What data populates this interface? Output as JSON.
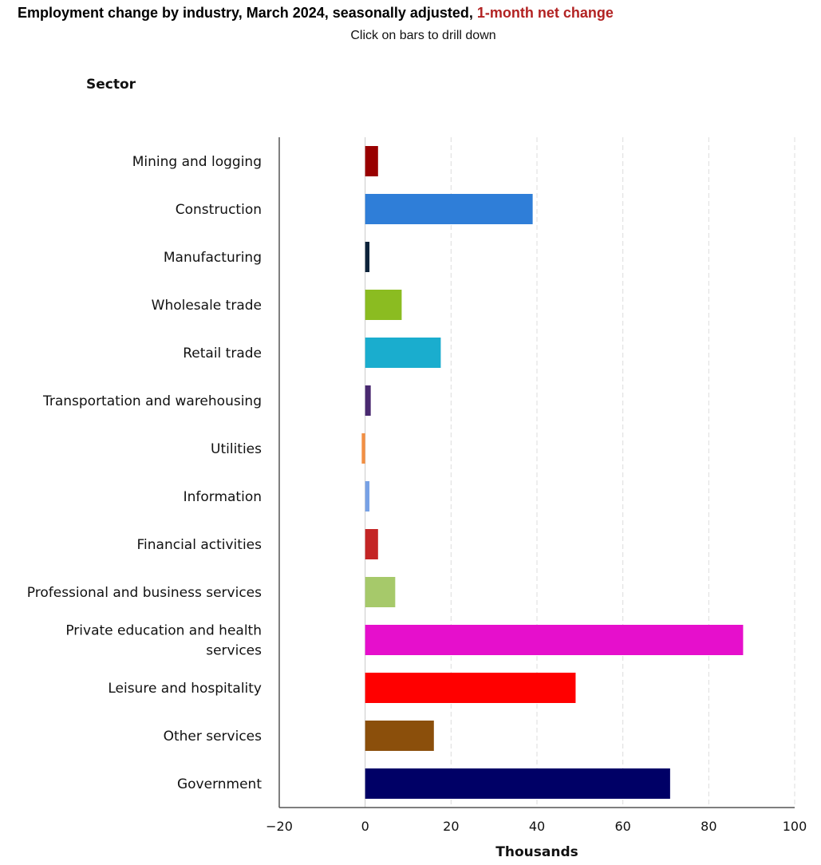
{
  "header": {
    "title_main": "Employment change by industry, March 2024, seasonally adjusted,",
    "title_highlight": "1-month net change",
    "subtitle": "Click on bars to drill down"
  },
  "chart_data": {
    "type": "bar",
    "orientation": "horizontal",
    "y_axis_title": "Sector",
    "x_axis_title": "Thousands",
    "xlim": [
      -20,
      100
    ],
    "x_ticks": [
      -20,
      0,
      20,
      40,
      60,
      80,
      100
    ],
    "x_tick_labels": [
      "−20",
      "0",
      "20",
      "40",
      "60",
      "80",
      "100"
    ],
    "grid": true,
    "categories": [
      [
        "Mining and logging"
      ],
      [
        "Construction"
      ],
      [
        "Manufacturing"
      ],
      [
        "Wholesale trade"
      ],
      [
        "Retail trade"
      ],
      [
        "Transportation and warehousing"
      ],
      [
        "Utilities"
      ],
      [
        "Information"
      ],
      [
        "Financial activities"
      ],
      [
        "Professional and business services"
      ],
      [
        "Private education and health",
        "services"
      ],
      [
        "Leisure and hospitality"
      ],
      [
        "Other services"
      ],
      [
        "Government"
      ]
    ],
    "values": [
      3,
      39,
      1,
      8.5,
      17.6,
      1.3,
      -0.8,
      1,
      3,
      7,
      88,
      49,
      16,
      71
    ],
    "colors": [
      "#990000",
      "#2f7ed8",
      "#0d233a",
      "#8bbc21",
      "#1aadce",
      "#492970",
      "#f28f43",
      "#77a1e5",
      "#c42525",
      "#a6c96a",
      "#e60fcc",
      "#ff0000",
      "#8b4f0b",
      "#000066"
    ]
  }
}
